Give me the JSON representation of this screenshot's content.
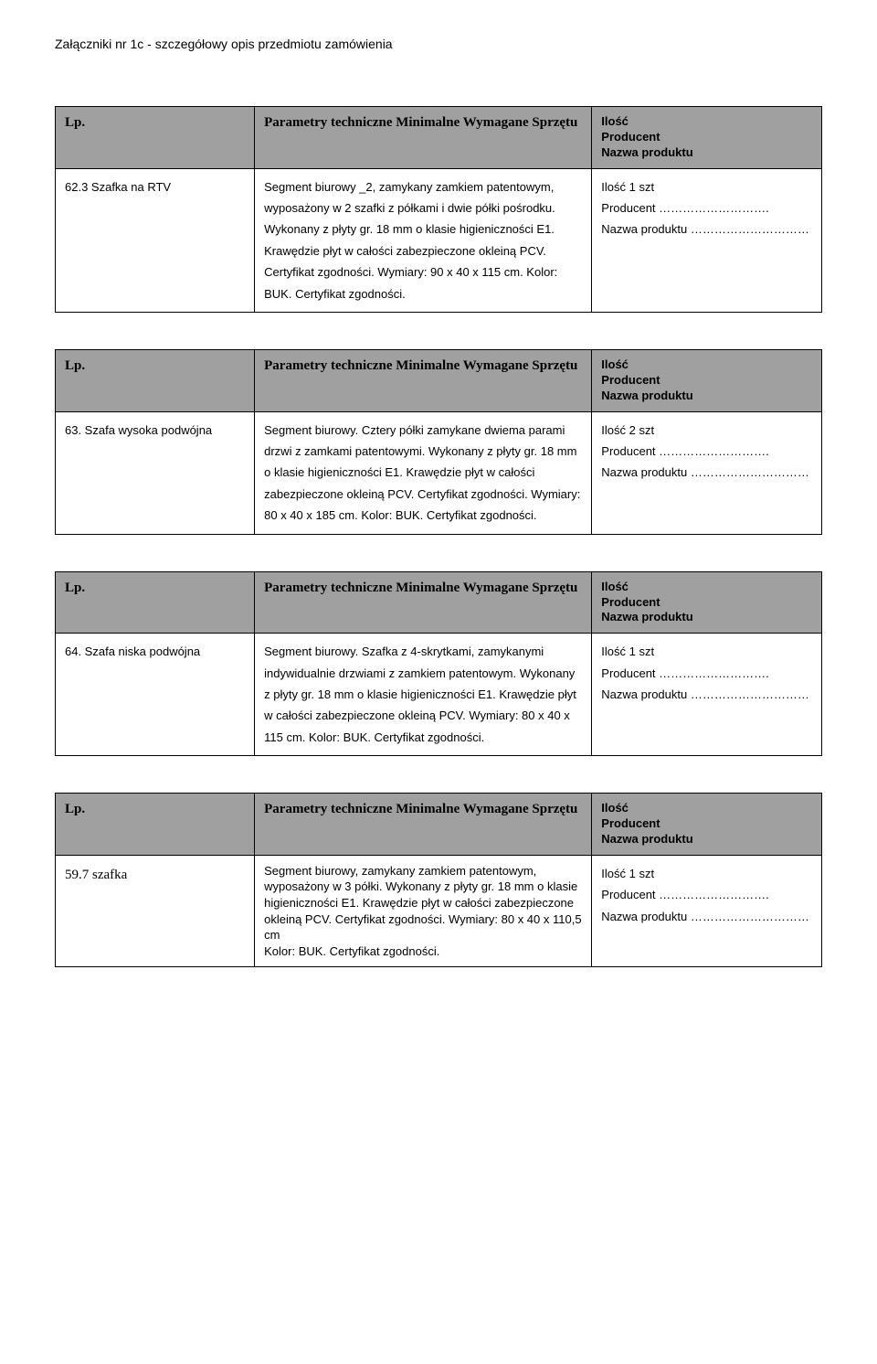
{
  "doc_title": "Załączniki nr 1c - szczegółowy opis przedmiotu zamówienia",
  "header": {
    "col1": "Lp.",
    "col2": "Parametry techniczne Minimalne Wymagane Sprzętu",
    "col3": "Ilość\nProducent\nNazwa produktu"
  },
  "rows": [
    {
      "item": "62.3 Szafka na RTV",
      "params": "Segment biurowy _2, zamykany zamkiem patentowym, wyposażony w 2 szafki z półkami i dwie półki pośrodku. Wykonany z płyty gr. 18 mm o klasie higieniczności E1. Krawędzie płyt w całości zabezpieczone okleiną PCV. Certyfikat zgodności. Wymiary:  90 x 40 x 115 cm. Kolor: BUK. Certyfikat zgodności.",
      "info": "Ilość  1 szt\nProducent ……………………….\nNazwa produktu …………………………"
    },
    {
      "item": "63. Szafa wysoka podwójna",
      "params": "Segment biurowy. Cztery półki zamykane dwiema parami drzwi z zamkami patentowymi. Wykonany  z płyty gr. 18 mm o klasie higieniczności E1. Krawędzie płyt w całości zabezpieczone okleiną PCV. Certyfikat zgodności. Wymiary:  80 x 40 x 185 cm. Kolor: BUK. Certyfikat zgodności.",
      "info": "Ilość  2 szt\nProducent ……………………….\nNazwa produktu …………………………"
    },
    {
      "item": "64. Szafa niska podwójna",
      "params": "Segment biurowy. Szafka z 4-skrytkami, zamykanymi indywidualnie drzwiami z zamkiem patentowym. Wykonany  z płyty gr. 18 mm o klasie higieniczności E1.  Krawędzie płyt w całości zabezpieczone okleiną PCV. Wymiary: 80  x 40 x 115 cm. Kolor: BUK. Certyfikat zgodności.",
      "info": "Ilość  1 szt\nProducent ……………………….\nNazwa produktu …………………………"
    },
    {
      "item": "59.7 szafka",
      "item_serif": true,
      "params": "Segment biurowy, zamykany  zamkiem patentowym, wyposażony w 3 półki. Wykonany z płyty gr. 18 mm o klasie higieniczności E1.  Krawędzie płyt w całości zabezpieczone okleiną PCV. Certyfikat zgodności. Wymiary:  80 x 40 x 110,5 cm\nKolor: BUK. Certyfikat zgodności.",
      "params_tight": true,
      "info": "Ilość  1 szt\nProducent ……………………….\nNazwa produktu …………………………"
    }
  ]
}
